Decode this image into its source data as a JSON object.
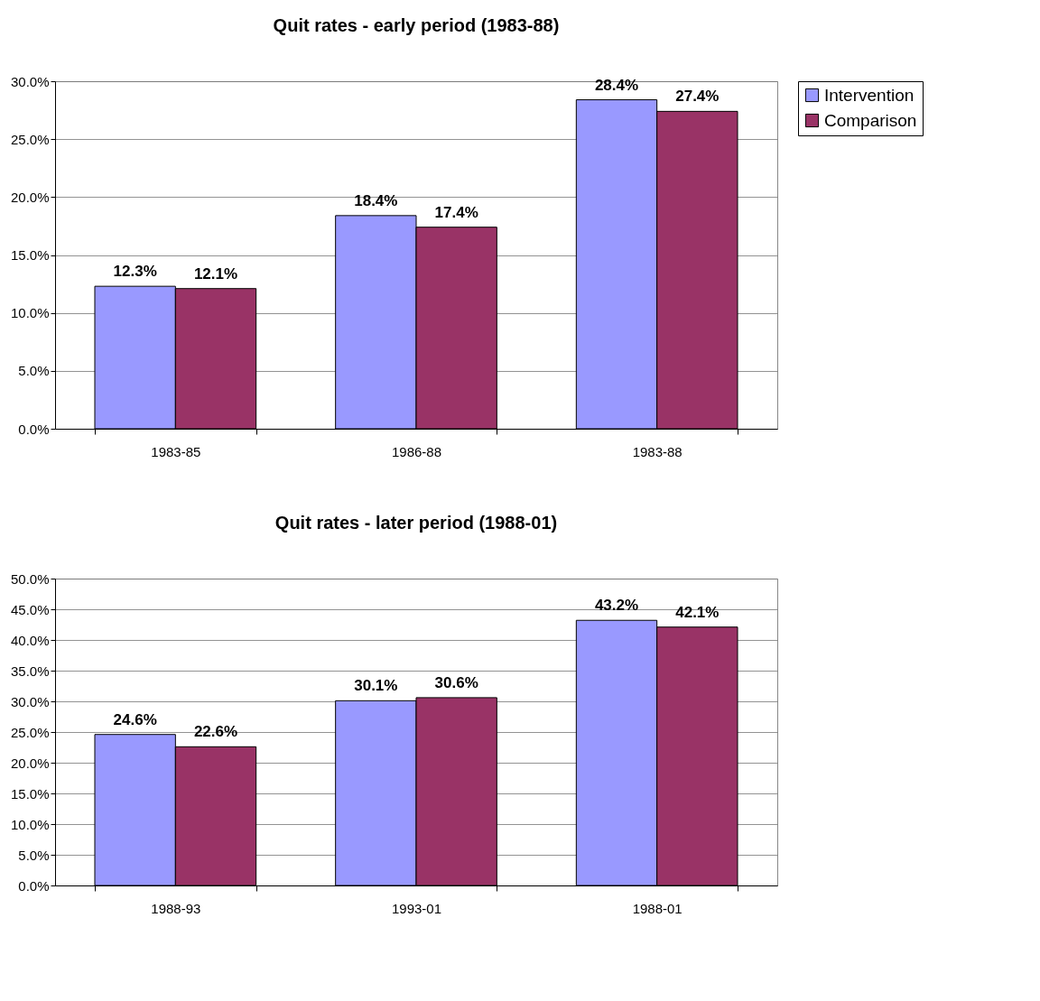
{
  "chart_data": [
    {
      "type": "bar",
      "title": "Quit rates - early period (1983-88)",
      "categories": [
        "1983-85",
        "1986-88",
        "1983-88"
      ],
      "series": [
        {
          "name": "Intervention",
          "color": "#9999ff",
          "values": [
            12.3,
            18.4,
            28.4
          ],
          "value_labels": [
            "12.3%",
            "18.4%",
            "28.4%"
          ]
        },
        {
          "name": "Comparison",
          "color": "#993366",
          "values": [
            12.1,
            17.4,
            27.4
          ],
          "value_labels": [
            "12.1%",
            "17.4%",
            "27.4%"
          ]
        }
      ],
      "ylim": [
        0,
        30
      ],
      "yticks": [
        {
          "value": 0,
          "label": "0.0%"
        },
        {
          "value": 5,
          "label": "5.0%"
        },
        {
          "value": 10,
          "label": "10.0%"
        },
        {
          "value": 15,
          "label": "15.0%"
        },
        {
          "value": 20,
          "label": "20.0%"
        },
        {
          "value": 25,
          "label": "25.0%"
        },
        {
          "value": 30,
          "label": "30.0%"
        }
      ],
      "grid": "y",
      "legend": "right"
    },
    {
      "type": "bar",
      "title": "Quit rates - later period (1988-01)",
      "categories": [
        "1988-93",
        "1993-01",
        "1988-01"
      ],
      "series": [
        {
          "name": "Intervention",
          "color": "#9999ff",
          "values": [
            24.6,
            30.1,
            43.2
          ],
          "value_labels": [
            "24.6%",
            "30.1%",
            "43.2%"
          ]
        },
        {
          "name": "Comparison",
          "color": "#993366",
          "values": [
            22.6,
            30.6,
            42.1
          ],
          "value_labels": [
            "22.6%",
            "30.6%",
            "42.1%"
          ]
        }
      ],
      "ylim": [
        0,
        50
      ],
      "yticks": [
        {
          "value": 0,
          "label": "0.0%"
        },
        {
          "value": 5,
          "label": "5.0%"
        },
        {
          "value": 10,
          "label": "10.0%"
        },
        {
          "value": 15,
          "label": "15.0%"
        },
        {
          "value": 20,
          "label": "20.0%"
        },
        {
          "value": 25,
          "label": "25.0%"
        },
        {
          "value": 30,
          "label": "30.0%"
        },
        {
          "value": 35,
          "label": "35.0%"
        },
        {
          "value": 40,
          "label": "40.0%"
        },
        {
          "value": 45,
          "label": "45.0%"
        },
        {
          "value": 50,
          "label": "50.0%"
        }
      ],
      "grid": "y",
      "legend": "right"
    }
  ]
}
